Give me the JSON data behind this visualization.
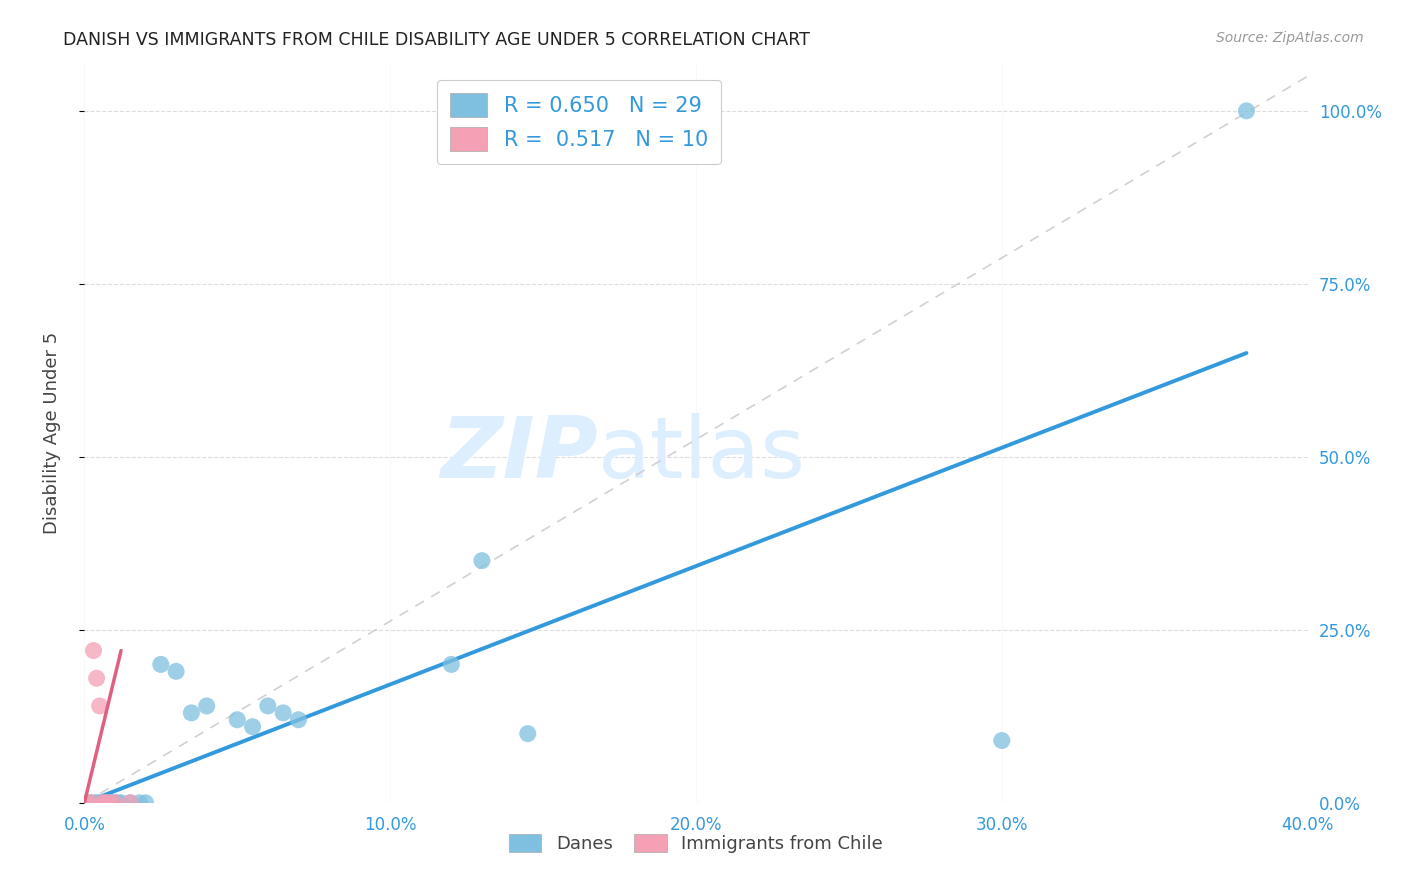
{
  "title": "DANISH VS IMMIGRANTS FROM CHILE DISABILITY AGE UNDER 5 CORRELATION CHART",
  "source": "Source: ZipAtlas.com",
  "ylabel": "Disability Age Under 5",
  "xlim": [
    0.0,
    0.4
  ],
  "ylim": [
    0.0,
    1.05
  ],
  "xticks": [
    0.0,
    0.1,
    0.2,
    0.3,
    0.4
  ],
  "xtick_labels": [
    "0.0%",
    "10.0%",
    "20.0%",
    "30.0%",
    "40.0%"
  ],
  "ytick_labels": [
    "0.0%",
    "25.0%",
    "50.0%",
    "75.0%",
    "100.0%"
  ],
  "ytick_positions": [
    0.0,
    0.25,
    0.5,
    0.75,
    1.0
  ],
  "danes_R": 0.65,
  "danes_N": 29,
  "chile_R": 0.517,
  "chile_N": 10,
  "danes_color": "#7fbfdf",
  "chile_color": "#f4a0b5",
  "danes_line_color": "#3399dd",
  "chile_line_color": "#e06080",
  "ref_line_color": "#cccccc",
  "legend_text_color": "#3399dd",
  "background_color": "#ffffff",
  "grid_color": "#dddddd",
  "watermark_color": "#ddeeff",
  "title_color": "#222222",
  "source_color": "#999999",
  "tick_color": "#3399dd",
  "ylabel_color": "#444444",
  "danes_x": [
    0.001,
    0.002,
    0.003,
    0.004,
    0.005,
    0.006,
    0.007,
    0.008,
    0.009,
    0.01,
    0.011,
    0.012,
    0.015,
    0.018,
    0.02,
    0.025,
    0.03,
    0.035,
    0.04,
    0.05,
    0.055,
    0.06,
    0.065,
    0.07,
    0.12,
    0.13,
    0.145,
    0.3,
    0.38
  ],
  "danes_y": [
    0.0,
    0.0,
    0.0,
    0.0,
    0.0,
    0.0,
    0.0,
    0.0,
    0.0,
    0.0,
    0.0,
    0.0,
    0.0,
    0.0,
    0.0,
    0.2,
    0.19,
    0.13,
    0.14,
    0.12,
    0.11,
    0.14,
    0.13,
    0.12,
    0.2,
    0.35,
    0.1,
    0.09,
    1.0
  ],
  "chile_x": [
    0.001,
    0.002,
    0.003,
    0.004,
    0.005,
    0.006,
    0.007,
    0.008,
    0.01,
    0.015
  ],
  "chile_y": [
    0.0,
    0.0,
    0.22,
    0.18,
    0.14,
    0.0,
    0.0,
    0.0,
    0.0,
    0.0
  ],
  "danes_line_x0": 0.0,
  "danes_line_y0": 0.0,
  "danes_line_x1": 0.38,
  "danes_line_y1": 0.65,
  "chile_line_x0": 0.0,
  "chile_line_y0": 0.0,
  "chile_line_x1": 0.012,
  "chile_line_y1": 0.22,
  "ref_line_x0": 0.0,
  "ref_line_y0": 0.0,
  "ref_line_x1": 0.4,
  "ref_line_y1": 1.05
}
